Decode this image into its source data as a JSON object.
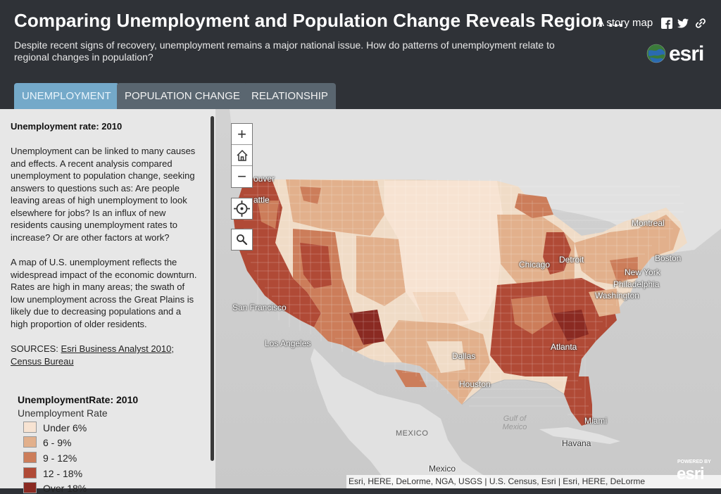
{
  "header": {
    "title": "Comparing Unemployment and Population Change Reveals Region ...",
    "subtitle": "Despite recent signs of recovery, unemployment remains a major national issue. How do patterns of unemployment relate to regional changes in population?",
    "story_link": "A story map",
    "logo_text": "esri",
    "share_icons": [
      "facebook-icon",
      "twitter-icon",
      "link-icon"
    ]
  },
  "tabs": [
    {
      "label": "UNEMPLOYMENT",
      "active": true
    },
    {
      "label": "POPULATION CHANGE",
      "active": false
    },
    {
      "label": "RELATIONSHIP",
      "active": false
    }
  ],
  "sidebar": {
    "heading": "Unemployment rate: 2010",
    "paragraph1": "Unemployment can be linked to many causes and effects. A recent analysis compared unemployment to population change, seeking answers to questions such as: Are people leaving areas of high unemployment to look elsewhere for jobs? Is an influx of new residents causing unemployment rates to increase? Or are other factors at work?",
    "paragraph2": "A map of U.S. unemployment reflects the widespread impact of the economic downturn. Rates are high in many areas; the swath of low unemployment across the Great Plains is likely due to decreasing populations and a high proportion of older residents.",
    "sources_prefix": "SOURCES: ",
    "source_link_1": "Esri Business Analyst 2010",
    "source_separator": "; ",
    "source_link_2": "Census Bureau"
  },
  "legend": {
    "title": "UnemploymentRate: 2010",
    "subtitle": "Unemployment Rate",
    "classes": [
      {
        "label": "Under 6%",
        "color": "#f7e3d2"
      },
      {
        "label": "6 - 9%",
        "color": "#e2b08c"
      },
      {
        "label": "9 - 12%",
        "color": "#cc7d5a"
      },
      {
        "label": "12 - 18%",
        "color": "#b04a36"
      },
      {
        "label": "Over 18%",
        "color": "#8a2a22"
      }
    ]
  },
  "map": {
    "controls": [
      "zoom-in-icon",
      "home-icon",
      "zoom-out-icon",
      "locate-icon",
      "search-icon"
    ],
    "zoom_in": "+",
    "zoom_out": "−",
    "cities": {
      "vancouver": "ouver",
      "seattle": "attle",
      "san_francisco": "San Francisco",
      "los_angeles": "Los Angeles",
      "dallas": "Dallas",
      "houston": "Houston",
      "chicago": "Chicago",
      "detroit": "Detroit",
      "montreal": "Montreal",
      "boston": "Boston",
      "new_york": "New York",
      "philadelphia": "Philadelphia",
      "washington": "Washington",
      "atlanta": "Atlanta",
      "miami": "Miami",
      "havana": "Havana",
      "mexico_city": "Mexico"
    },
    "gulf": "Gulf of Mexico",
    "country_mexico": "MEXICO",
    "attribution": "Esri, HERE, DeLorme, NGA, USGS | U.S. Census, Esri | Esri, HERE, DeLorme",
    "powered_by": "POWERED BY",
    "powered_logo": "esri"
  }
}
